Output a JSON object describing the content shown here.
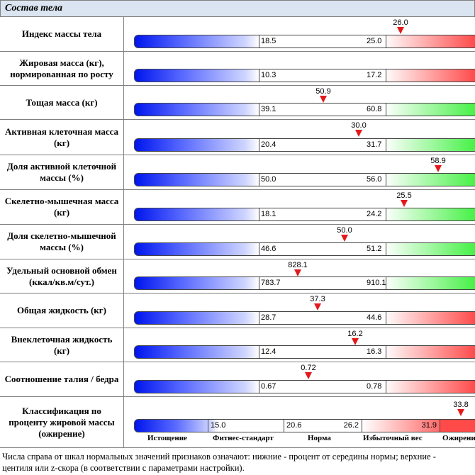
{
  "section_title": "Состав тела",
  "rows": [
    {
      "label": "Индекс массы тела",
      "low": "18.5",
      "high": "25.0",
      "value": "26.0",
      "red": true
    },
    {
      "label": "Жировая масса (кг), нормированная по росту",
      "low": "10.3",
      "high": "17.2",
      "value": "",
      "red": true
    },
    {
      "label": "Тощая масса (кг)",
      "low": "39.1",
      "high": "60.8",
      "value": "50.9",
      "red": false
    },
    {
      "label": "Активная клеточная масса (кг)",
      "low": "20.4",
      "high": "31.7",
      "value": "30.0",
      "red": false
    },
    {
      "label": "Доля активной клеточной массы (%)",
      "low": "50.0",
      "high": "56.0",
      "value": "58.9",
      "red": false
    },
    {
      "label": "Скелетно-мышечная масса (кг)",
      "low": "18.1",
      "high": "24.2",
      "value": "25.5",
      "red": false
    },
    {
      "label": "Доля скелетно-мышечной массы (%)",
      "low": "46.6",
      "high": "51.2",
      "value": "50.0",
      "red": false
    },
    {
      "label": "Удельный основной обмен (ккал/кв.м/сут.)",
      "low": "783.7",
      "high": "910.1",
      "value": "828.1",
      "red": false
    },
    {
      "label": "Общая жидкость (кг)",
      "low": "28.7",
      "high": "44.6",
      "value": "37.3",
      "red": true
    },
    {
      "label": "Внеклеточная жидкость (кг)",
      "low": "12.4",
      "high": "16.3",
      "value": "16.2",
      "red": true
    },
    {
      "label": "Соотношение талия / бедра",
      "low": "0.67",
      "high": "0.78",
      "value": "0.72",
      "red": true
    }
  ],
  "classification": {
    "label": "Классификация по проценту жировой массы (ожирение)",
    "value": "33.8",
    "thresholds": [
      "15.0",
      "20.6",
      "26.2",
      "31.9"
    ],
    "categories": [
      "Истощение",
      "Фитнес-стандарт",
      "Норма",
      "Избыточный вес",
      "Ожирение"
    ]
  },
  "footnote_line1": "Числа справа от шкал нормальных значений признаков означают: нижние - процент от середины нормы; верхние -",
  "footnote_line2": "центиля или z-скора (в соответствии с параметрами настройки)."
}
